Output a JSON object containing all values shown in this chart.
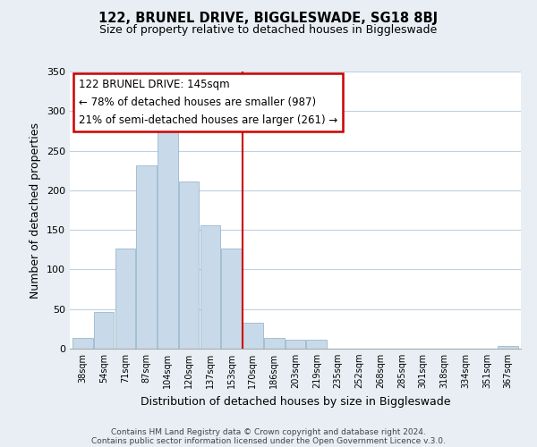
{
  "title": "122, BRUNEL DRIVE, BIGGLESWADE, SG18 8BJ",
  "subtitle": "Size of property relative to detached houses in Biggleswade",
  "xlabel": "Distribution of detached houses by size in Biggleswade",
  "ylabel": "Number of detached properties",
  "bar_color": "#c8daea",
  "bar_edge_color": "#9ab8cc",
  "bg_color": "#e8eef4",
  "plot_bg_color": "#ffffff",
  "grid_color": "#c0d0e0",
  "vline_color": "#cc0000",
  "vline_x": 7.5,
  "annotation_box_color": "#ffffff",
  "annotation_box_edge": "#cc0000",
  "annotation_line1": "122 BRUNEL DRIVE: 145sqm",
  "annotation_line2": "← 78% of detached houses are smaller (987)",
  "annotation_line3": "21% of semi-detached houses are larger (261) →",
  "categories": [
    "38sqm",
    "54sqm",
    "71sqm",
    "87sqm",
    "104sqm",
    "120sqm",
    "137sqm",
    "153sqm",
    "170sqm",
    "186sqm",
    "203sqm",
    "219sqm",
    "235sqm",
    "252sqm",
    "268sqm",
    "285sqm",
    "301sqm",
    "318sqm",
    "334sqm",
    "351sqm",
    "367sqm"
  ],
  "values": [
    13,
    46,
    127,
    231,
    282,
    211,
    156,
    126,
    33,
    13,
    11,
    11,
    0,
    0,
    0,
    0,
    0,
    0,
    0,
    0,
    3
  ],
  "ylim": [
    0,
    350
  ],
  "yticks": [
    0,
    50,
    100,
    150,
    200,
    250,
    300,
    350
  ],
  "footer1": "Contains HM Land Registry data © Crown copyright and database right 2024.",
  "footer2": "Contains public sector information licensed under the Open Government Licence v.3.0."
}
